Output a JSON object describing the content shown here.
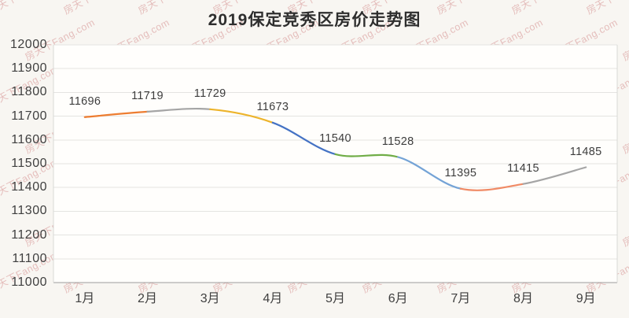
{
  "chart": {
    "title": "2019保定竞秀区房价走势图",
    "watermark_text": "房天下Fang.com"
  },
  "chart_data": {
    "type": "line",
    "smooth": true,
    "title": "2019保定竞秀区房价走势图",
    "xlabel": "",
    "ylabel": "",
    "categories": [
      "1月",
      "2月",
      "3月",
      "4月",
      "5月",
      "6月",
      "7月",
      "8月",
      "9月"
    ],
    "values": [
      11696,
      11719,
      11729,
      11673,
      11540,
      11528,
      11395,
      11415,
      11485
    ],
    "data_labels": [
      "11696",
      "11719",
      "11729",
      "11673",
      "11540",
      "11528",
      "11395",
      "11415",
      "11485"
    ],
    "ylim": [
      11000,
      12000
    ],
    "y_ticks": [
      12000,
      11900,
      11800,
      11700,
      11600,
      11500,
      11400,
      11300,
      11200,
      11100,
      11000
    ],
    "grid": true,
    "legend": "none",
    "segment_colors": [
      "#ED7D31",
      "#A5A5A5",
      "#EDB42B",
      "#4472C4",
      "#70AD47",
      "#74A3D6",
      "#F08A65",
      "#A5A5A5"
    ],
    "colors": {
      "axis_text": "#3f3f3f",
      "grid_line": "#e4e4e1",
      "axis_line": "#9c9c9c",
      "plot_border": "#d9d9d6",
      "plot_bg": "#fffefc",
      "page_bg": "#f8f6f2",
      "title_text": "#2e2e2e",
      "watermark": "#d08080"
    }
  }
}
